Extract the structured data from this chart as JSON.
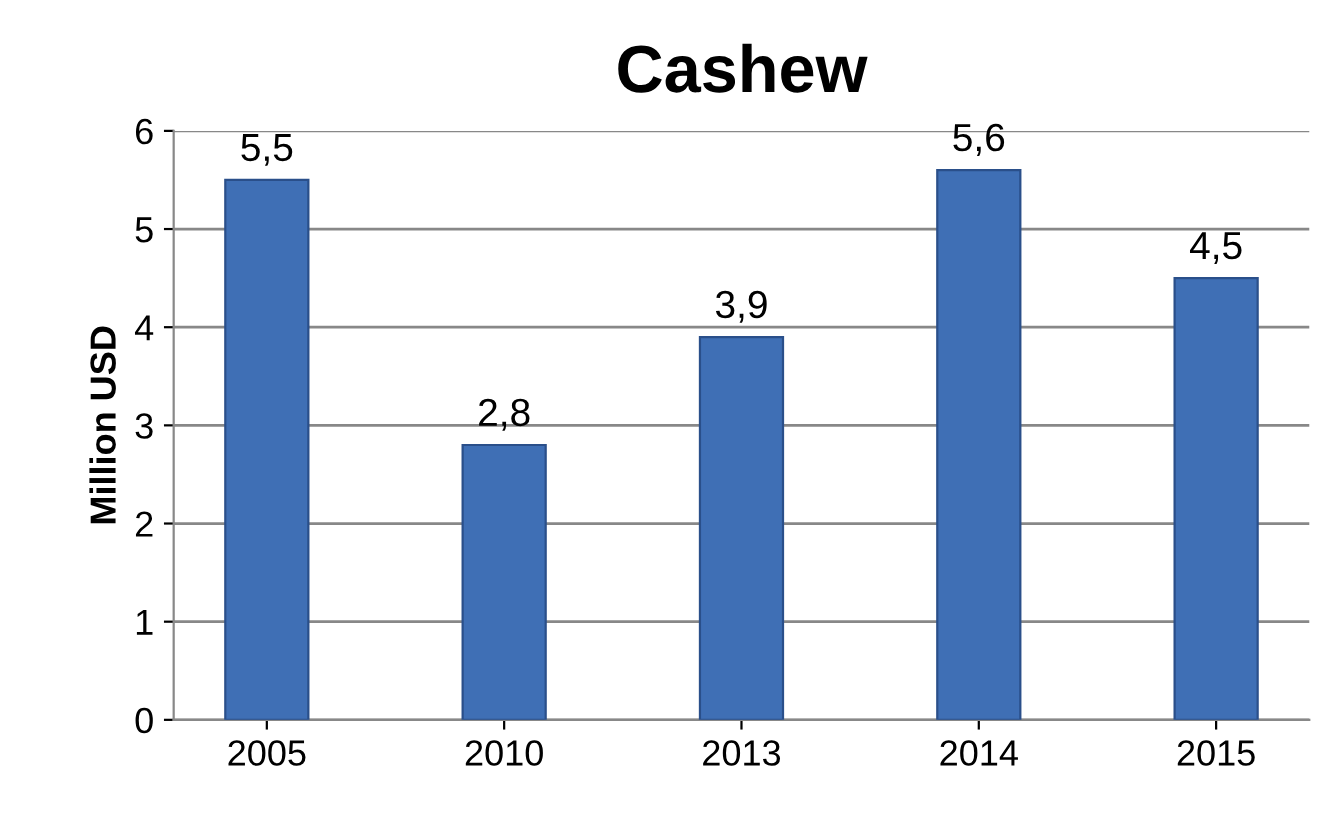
{
  "chart_data": {
    "type": "bar",
    "title": "Cashew",
    "ylabel": "Million USD",
    "categories": [
      "2005",
      "2010",
      "2013",
      "2014",
      "2015"
    ],
    "series": [
      {
        "color": "#3f6fb5",
        "values": [
          5.5,
          2.8,
          3.9,
          5.6,
          4.5
        ],
        "value_labels": [
          "5,5",
          "2,8",
          "3,9",
          "5,6",
          "4,5"
        ]
      }
    ],
    "ylim": [
      0,
      6
    ],
    "yticks": [
      0,
      1,
      2,
      3,
      4,
      5,
      6
    ],
    "grid": "y"
  }
}
